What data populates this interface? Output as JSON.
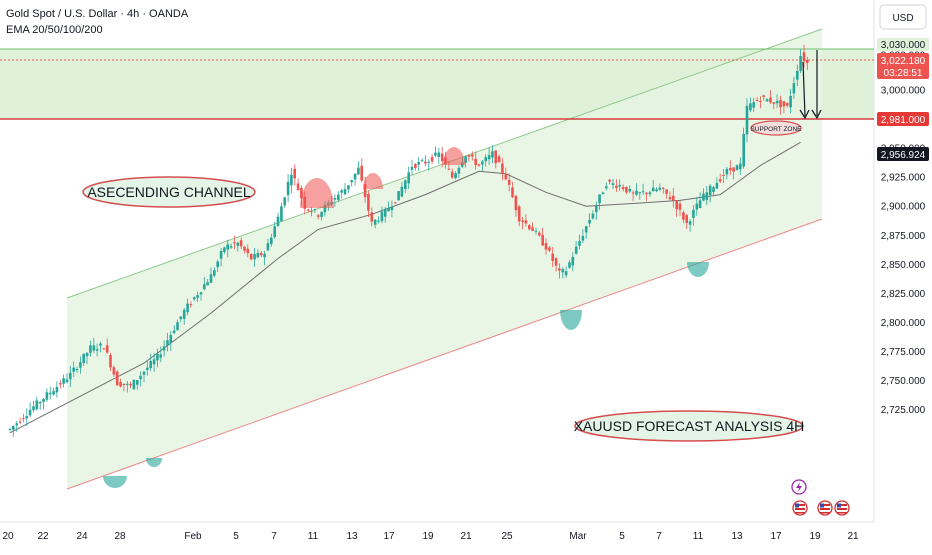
{
  "header": {
    "symbol": "Gold Spot / U.S. Dollar · 4h · OANDA",
    "indicator": "EMA 20/50/100/200"
  },
  "currency_button": "USD",
  "annotations": {
    "channel_label": "ASECENDING CHANNEL",
    "forecast_label": "XAUUSD FORECAST ANALYSIS 4H",
    "support_label": "SUPPORT ZONE"
  },
  "price_labels": {
    "resistance": "3,030.000",
    "last_price": "3,022.180",
    "countdown": "03:28:51",
    "support": "2,981.000",
    "ema": "2,956.924"
  },
  "colors": {
    "bull": "#26a69a",
    "bear": "#ef5350",
    "channel_fill": "#e3f4dc",
    "channel_upper": "#8bc98a",
    "channel_lower": "#ee8888",
    "ema": "#6e6e6e",
    "support_line": "#d63c3c",
    "resistance_line": "#6fbf6f"
  },
  "chart_data": {
    "type": "candlestick",
    "title": "Gold Spot / U.S. Dollar · 4h · OANDA",
    "ylim": [
      2705,
      3050
    ],
    "y_ticks": [
      2725,
      2750,
      2775,
      2800,
      2825,
      2850,
      2875,
      2900,
      2925,
      2950,
      2975,
      3000,
      3030
    ],
    "y_tick_labels": [
      "2,725.000",
      "2,750.000",
      "2,775.000",
      "2,800.000",
      "2,825.000",
      "2,850.000",
      "2,875.000",
      "2,900.000",
      "2,925.000",
      "2,950.000",
      "2,975.000",
      "3,000.000",
      "3,030.000"
    ],
    "x_tick_labels": [
      "20",
      "22",
      "24",
      "28",
      "Feb",
      "5",
      "7",
      "11",
      "13",
      "17",
      "19",
      "21",
      "25",
      "Mar",
      "5",
      "7",
      "11",
      "13",
      "17",
      "19",
      "21"
    ],
    "price_path": [
      {
        "t": 0,
        "p": 2708
      },
      {
        "t": 3,
        "p": 2725
      },
      {
        "t": 6,
        "p": 2740
      },
      {
        "t": 9,
        "p": 2755
      },
      {
        "t": 12,
        "p": 2778
      },
      {
        "t": 14,
        "p": 2780
      },
      {
        "t": 16,
        "p": 2748
      },
      {
        "t": 18,
        "p": 2745
      },
      {
        "t": 20,
        "p": 2758
      },
      {
        "t": 22,
        "p": 2770
      },
      {
        "t": 24,
        "p": 2790
      },
      {
        "t": 26,
        "p": 2810
      },
      {
        "t": 28,
        "p": 2825
      },
      {
        "t": 30,
        "p": 2840
      },
      {
        "t": 32,
        "p": 2865
      },
      {
        "t": 34,
        "p": 2868
      },
      {
        "t": 36,
        "p": 2855
      },
      {
        "t": 38,
        "p": 2860
      },
      {
        "t": 40,
        "p": 2890
      },
      {
        "t": 42,
        "p": 2930
      },
      {
        "t": 44,
        "p": 2900
      },
      {
        "t": 46,
        "p": 2893
      },
      {
        "t": 48,
        "p": 2905
      },
      {
        "t": 50,
        "p": 2915
      },
      {
        "t": 52,
        "p": 2932
      },
      {
        "t": 54,
        "p": 2885
      },
      {
        "t": 56,
        "p": 2895
      },
      {
        "t": 58,
        "p": 2910
      },
      {
        "t": 60,
        "p": 2935
      },
      {
        "t": 62,
        "p": 2938
      },
      {
        "t": 64,
        "p": 2945
      },
      {
        "t": 66,
        "p": 2925
      },
      {
        "t": 68,
        "p": 2945
      },
      {
        "t": 70,
        "p": 2935
      },
      {
        "t": 72,
        "p": 2945
      },
      {
        "t": 74,
        "p": 2925
      },
      {
        "t": 76,
        "p": 2890
      },
      {
        "t": 78,
        "p": 2880
      },
      {
        "t": 80,
        "p": 2865
      },
      {
        "t": 82,
        "p": 2842
      },
      {
        "t": 83,
        "p": 2845
      },
      {
        "t": 85,
        "p": 2870
      },
      {
        "t": 87,
        "p": 2895
      },
      {
        "t": 89,
        "p": 2920
      },
      {
        "t": 91,
        "p": 2918
      },
      {
        "t": 93,
        "p": 2910
      },
      {
        "t": 95,
        "p": 2912
      },
      {
        "t": 97,
        "p": 2915
      },
      {
        "t": 99,
        "p": 2905
      },
      {
        "t": 101,
        "p": 2885
      },
      {
        "t": 103,
        "p": 2905
      },
      {
        "t": 105,
        "p": 2918
      },
      {
        "t": 107,
        "p": 2930
      },
      {
        "t": 109,
        "p": 2935
      },
      {
        "t": 110,
        "p": 2985
      },
      {
        "t": 112,
        "p": 2993
      },
      {
        "t": 114,
        "p": 2990
      },
      {
        "t": 116,
        "p": 2985
      },
      {
        "t": 118,
        "p": 3030
      },
      {
        "t": 119,
        "p": 3023
      }
    ],
    "ema_path": [
      {
        "t": 0,
        "p": 2705
      },
      {
        "t": 10,
        "p": 2735
      },
      {
        "t": 20,
        "p": 2765
      },
      {
        "t": 30,
        "p": 2808
      },
      {
        "t": 40,
        "p": 2855
      },
      {
        "t": 46,
        "p": 2880
      },
      {
        "t": 54,
        "p": 2893
      },
      {
        "t": 62,
        "p": 2910
      },
      {
        "t": 70,
        "p": 2930
      },
      {
        "t": 74,
        "p": 2928
      },
      {
        "t": 80,
        "p": 2912
      },
      {
        "t": 86,
        "p": 2900
      },
      {
        "t": 92,
        "p": 2902
      },
      {
        "t": 100,
        "p": 2905
      },
      {
        "t": 106,
        "p": 2910
      },
      {
        "t": 112,
        "p": 2935
      },
      {
        "t": 118,
        "p": 2955
      }
    ]
  }
}
